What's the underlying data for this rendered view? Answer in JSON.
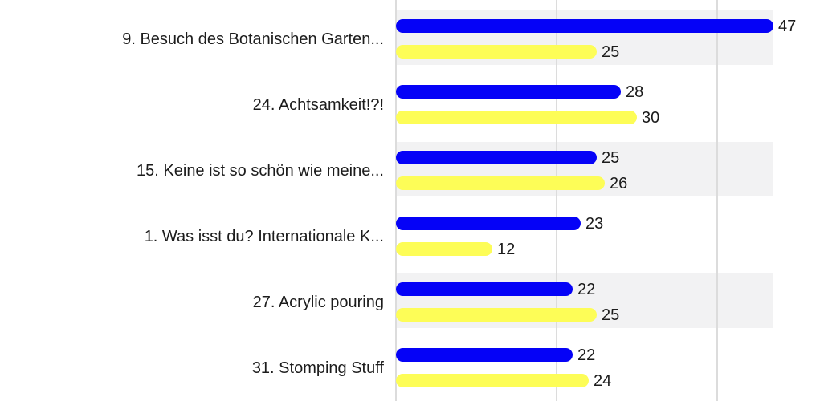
{
  "chart_data": {
    "type": "bar",
    "orientation": "horizontal",
    "title": "",
    "categories": [
      "9. Besuch des Botanischen Garten...",
      "24. Achtsamkeit!?!",
      "15. Keine ist so schön wie meine...",
      "1. Was isst du? Internationale K...",
      "27. Acrylic pouring",
      "31. Stomping Stuff"
    ],
    "series": [
      {
        "name": "blue-series",
        "color": "#0502f7",
        "values": [
          47,
          28,
          25,
          23,
          22,
          22
        ]
      },
      {
        "name": "yellow-series",
        "color": "#fdfd57",
        "values": [
          25,
          30,
          26,
          12,
          25,
          24
        ]
      }
    ],
    "value_labels": [
      [
        "47",
        "25"
      ],
      [
        "28",
        "30"
      ],
      [
        "25",
        "26"
      ],
      [
        "23",
        "12"
      ],
      [
        "22",
        "25"
      ],
      [
        "22",
        "24"
      ]
    ],
    "xlim": [
      0,
      47
    ],
    "gridline_values": [
      0,
      20,
      40
    ],
    "grid": true,
    "legend_position": "none",
    "xlabel": "",
    "ylabel": "",
    "styles": {
      "row_stripe_color": "#f2f2f3",
      "gridline_color": "#dcdcdc",
      "text_color": "#1c1c1c",
      "background_color": "#ffffff"
    }
  }
}
